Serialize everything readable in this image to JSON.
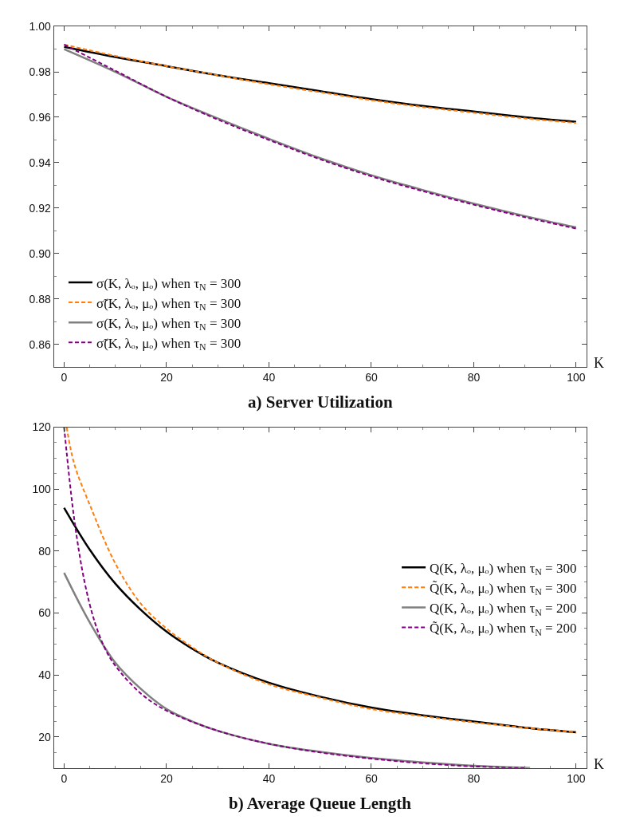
{
  "chart_data": [
    {
      "type": "line",
      "title": "a) Server Utilization",
      "xlabel": "K",
      "xlim": [
        -2,
        102
      ],
      "ylim": [
        0.85,
        1.0
      ],
      "xticks": [
        0,
        20,
        40,
        60,
        80,
        100
      ],
      "yticks": [
        {
          "value": 0.86,
          "label": "0.86"
        },
        {
          "value": 0.88,
          "label": "0.88"
        },
        {
          "value": 0.9,
          "label": "0.90"
        },
        {
          "value": 0.92,
          "label": "0.92"
        },
        {
          "value": 0.94,
          "label": "0.94"
        },
        {
          "value": 0.96,
          "label": "0.96"
        },
        {
          "value": 0.98,
          "label": "0.98"
        },
        {
          "value": 1.0,
          "label": "1.00"
        }
      ],
      "legend": "bottom left",
      "series": [
        {
          "name": "σ(K, λₒ, μₒ) when τ$_{N}$ = 300",
          "color": "#000000",
          "line_style": "solid",
          "x": [
            0,
            10,
            20,
            30,
            40,
            50,
            60,
            70,
            80,
            90,
            100
          ],
          "values": [
            0.991,
            0.9865,
            0.9825,
            0.9785,
            0.975,
            0.9715,
            0.968,
            0.965,
            0.9625,
            0.96,
            0.958
          ]
        },
        {
          "name": "σ̃(K, λₒ, μₒ) when τ$_{N}$ = 300",
          "color": "#ff7f0e",
          "line_style": "dashed",
          "x": [
            0,
            10,
            20,
            30,
            40,
            50,
            60,
            70,
            80,
            90,
            100
          ],
          "values": [
            0.992,
            0.987,
            0.9825,
            0.9785,
            0.9745,
            0.971,
            0.9675,
            0.9645,
            0.962,
            0.9595,
            0.9575
          ]
        },
        {
          "name": "σ(K, λₒ, μₒ) when τ$_{N}$ = 300",
          "color": "#808080",
          "line_style": "solid",
          "x": [
            0,
            10,
            20,
            30,
            40,
            50,
            60,
            70,
            80,
            90,
            100
          ],
          "values": [
            0.99,
            0.98,
            0.969,
            0.9595,
            0.9505,
            0.942,
            0.9345,
            0.928,
            0.922,
            0.9165,
            0.9115
          ]
        },
        {
          "name": "σ̃(K, λₒ, μₒ) when τ$_{N}$ = 300",
          "color": "#800080",
          "line_style": "dashed",
          "x": [
            0,
            10,
            20,
            30,
            40,
            50,
            60,
            70,
            80,
            90,
            100
          ],
          "values": [
            0.992,
            0.9805,
            0.969,
            0.959,
            0.95,
            0.9415,
            0.934,
            0.9275,
            0.9215,
            0.916,
            0.911
          ]
        }
      ]
    },
    {
      "type": "line",
      "title": "b) Average Queue Length",
      "xlabel": "K",
      "xlim": [
        -2,
        102
      ],
      "ylim": [
        10,
        120
      ],
      "xticks": [
        0,
        20,
        40,
        60,
        80,
        100
      ],
      "yticks": [
        20,
        40,
        60,
        80,
        100,
        120
      ],
      "legend": "right",
      "series": [
        {
          "name": "Q(K, λₒ, μₒ) when τ$_{N}$ = 300",
          "color": "#000000",
          "line_style": "solid",
          "x": [
            0,
            5,
            10,
            15,
            20,
            25,
            30,
            40,
            50,
            60,
            70,
            80,
            90,
            100
          ],
          "values": [
            94,
            80.5,
            69.5,
            61,
            54,
            48.5,
            44,
            37.5,
            33,
            29.5,
            27,
            25,
            23,
            21.5
          ]
        },
        {
          "name": "Q̃(K, λₒ, μₒ) when τ$_{N}$ = 300",
          "color": "#ff7f0e",
          "line_style": "dashed",
          "x": [
            0.5,
            2,
            5,
            10,
            15,
            20,
            25,
            30,
            40,
            50,
            60,
            70,
            80,
            90,
            100
          ],
          "values": [
            120,
            108,
            95,
            76,
            63,
            55,
            49,
            44,
            37,
            32.7,
            29,
            26.7,
            24.7,
            23,
            21.5
          ]
        },
        {
          "name": "Q(K, λₒ, μₒ) when τ$_{N}$ = 200",
          "color": "#808080",
          "line_style": "solid",
          "x": [
            0,
            5,
            10,
            15,
            20,
            25,
            30,
            40,
            50,
            60,
            70,
            80,
            91
          ],
          "values": [
            73,
            57,
            44,
            35.5,
            29,
            25,
            22,
            17.8,
            15.2,
            13.2,
            11.8,
            10.7,
            10
          ]
        },
        {
          "name": "Q̃(K, λₒ, μₒ) when τ$_{N}$ = 200",
          "color": "#800080",
          "line_style": "dashed",
          "x": [
            0,
            2,
            4,
            6,
            8,
            10,
            15,
            20,
            30,
            40,
            50,
            60,
            70,
            80,
            90
          ],
          "values": [
            120,
            90,
            70,
            57,
            48.5,
            43,
            34,
            28.5,
            22,
            17.8,
            15,
            13,
            11.5,
            10.5,
            10
          ]
        }
      ]
    }
  ]
}
